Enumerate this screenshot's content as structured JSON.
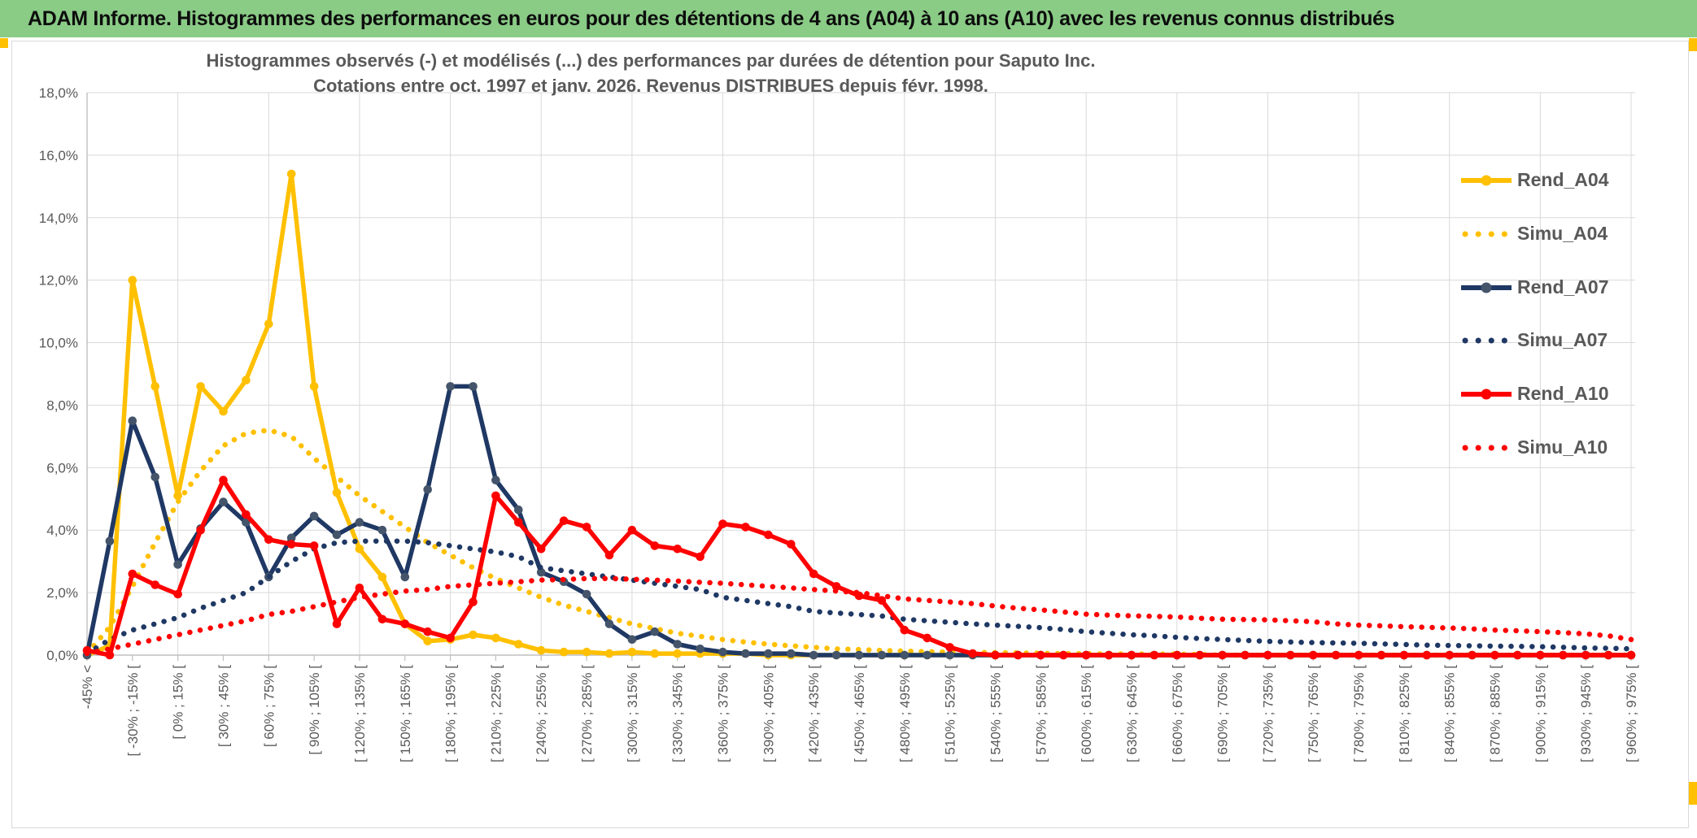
{
  "window": {
    "title": "ADAM Informe. Histogrammes des performances en euros pour des détentions de 4 ans (A04) à 10 ans (A10) avec les revenus connus distribués",
    "banner_color": "#8ACB86",
    "accent_color": "#FFC000"
  },
  "chart_data": {
    "type": "line",
    "title_line1": "Histogrammes observés (-) et modélisés (...) des performances par durées de détention pour Saputo Inc.",
    "title_line2": "Cotations entre oct. 1997 et janv. 2026. Revenus DISTRIBUES depuis févr. 1998.",
    "grid": true,
    "legend_position": "right",
    "ylim": [
      0,
      18
    ],
    "y_tick_step": 2,
    "y_tick_labels": [
      "0,0%",
      "2,0%",
      "4,0%",
      "6,0%",
      "8,0%",
      "10,0%",
      "12,0%",
      "14,0%",
      "16,0%",
      "18,0%"
    ],
    "n_points": 69,
    "label_every": 2,
    "x_axis_labels": [
      "-45% <",
      "[ -30% ; -15% [",
      "[ 0% ; 15% [",
      "[ 30% ; 45% [",
      "[ 60% ; 75% [",
      "[ 90% ; 105% [",
      "[ 120% ; 135% [",
      "[ 150% ; 165% [",
      "[ 180% ; 195% [",
      "[ 210% ; 225% [",
      "[ 240% ; 255% [",
      "[ 270% ; 285% [",
      "[ 300% ; 315% [",
      "[ 330% ; 345% [",
      "[ 360% ; 375% [",
      "[ 390% ; 405% [",
      "[ 420% ; 435% [",
      "[ 450% ; 465% [",
      "[ 480% ; 495% [",
      "[ 510% ; 525% [",
      "[ 540% ; 555% [",
      "[ 570% ; 585% [",
      "[ 600% ; 615% [",
      "[ 630% ; 645% [",
      "[ 660% ; 675% [",
      "[ 690% ; 705% [",
      "[ 720% ; 735% [",
      "[ 750% ; 765% [",
      "[ 780% ; 795% [",
      "[ 810% ; 825% [",
      "[ 840% ; 855% [",
      "[ 870% ; 885% [",
      "[ 900% ; 915% [",
      "[ 930% ; 945% [",
      "[ 960% ; 975% ["
    ],
    "text_color": "#595959",
    "grid_color": "#d9d9d9",
    "axis_color": "#bfbfbf",
    "series": [
      {
        "name": "Rend_A04",
        "color": "#FFC000",
        "marker_color": "#FFC000",
        "style": "solid",
        "marker": true,
        "values": [
          0,
          0.3,
          12,
          8.6,
          5.1,
          8.6,
          7.8,
          8.8,
          10.6,
          15.4,
          8.6,
          5.2,
          3.4,
          2.5,
          1.0,
          0.45,
          0.5,
          0.65,
          0.55,
          0.35,
          0.15,
          0.1,
          0.1,
          0.05,
          0.1,
          0.05,
          0.05,
          0.05,
          0.05,
          0.05,
          0,
          0,
          0,
          0,
          0,
          0,
          0,
          0,
          0,
          0,
          0,
          0,
          0,
          0,
          0,
          0,
          0,
          0,
          0,
          0,
          0,
          0,
          0,
          0,
          0,
          0,
          0,
          0,
          0,
          0,
          0,
          0,
          0,
          0,
          0,
          0,
          0,
          0,
          0
        ]
      },
      {
        "name": "Simu_A04",
        "color": "#FFC000",
        "style": "dotted",
        "marker": false,
        "values": [
          0.05,
          0.9,
          2.2,
          3.6,
          4.9,
          5.9,
          6.7,
          7.1,
          7.2,
          7.0,
          6.3,
          5.7,
          5.1,
          4.6,
          4.1,
          3.6,
          3.2,
          2.8,
          2.45,
          2.15,
          1.85,
          1.6,
          1.4,
          1.2,
          1.0,
          0.85,
          0.7,
          0.6,
          0.5,
          0.42,
          0.35,
          0.3,
          0.25,
          0.2,
          0.18,
          0.15,
          0.13,
          0.11,
          0.1,
          0.09,
          0.08,
          0.07,
          0.06,
          0.05,
          0.05,
          0.04,
          0.04,
          0.03,
          0.03,
          0.02,
          0,
          0,
          0,
          0,
          0,
          0,
          0,
          0,
          0,
          0,
          0,
          0,
          0,
          0,
          0,
          0,
          0,
          0,
          0
        ]
      },
      {
        "name": "Rend_A07",
        "color": "#1F3864",
        "marker_color": "#44546A",
        "style": "solid",
        "marker": true,
        "values": [
          0,
          3.65,
          7.5,
          5.7,
          2.9,
          4.05,
          4.9,
          4.25,
          2.5,
          3.75,
          4.45,
          3.85,
          4.25,
          4.0,
          2.5,
          5.3,
          8.6,
          8.6,
          5.6,
          4.65,
          2.65,
          2.35,
          1.95,
          1.0,
          0.5,
          0.75,
          0.35,
          0.2,
          0.1,
          0.05,
          0.05,
          0.05,
          0,
          0,
          0,
          0,
          0,
          0,
          0,
          0,
          0,
          0,
          0,
          0,
          0,
          0,
          0,
          0,
          0,
          0,
          0,
          0,
          0,
          0,
          0,
          0,
          0,
          0,
          0,
          0,
          0,
          0,
          0,
          0,
          0,
          0,
          0,
          0,
          0
        ]
      },
      {
        "name": "Simu_A07",
        "color": "#1F3864",
        "style": "dotted",
        "marker": false,
        "values": [
          0.05,
          0.5,
          0.8,
          1.0,
          1.2,
          1.5,
          1.75,
          2.0,
          2.5,
          3.0,
          3.4,
          3.6,
          3.65,
          3.65,
          3.65,
          3.6,
          3.5,
          3.4,
          3.3,
          3.15,
          2.8,
          2.7,
          2.6,
          2.5,
          2.4,
          2.3,
          2.2,
          2.1,
          1.85,
          1.75,
          1.65,
          1.55,
          1.4,
          1.35,
          1.3,
          1.25,
          1.15,
          1.1,
          1.05,
          1.0,
          0.96,
          0.92,
          0.88,
          0.82,
          0.75,
          0.7,
          0.65,
          0.62,
          0.57,
          0.53,
          0.5,
          0.47,
          0.44,
          0.42,
          0.4,
          0.39,
          0.38,
          0.36,
          0.34,
          0.32,
          0.31,
          0.3,
          0.29,
          0.28,
          0.27,
          0.25,
          0.23,
          0.22,
          0.2
        ]
      },
      {
        "name": "Rend_A10",
        "color": "#FF0000",
        "marker_color": "#FF0000",
        "style": "solid",
        "marker": true,
        "values": [
          0.15,
          0,
          2.6,
          2.25,
          1.95,
          4.0,
          5.6,
          4.5,
          3.7,
          3.55,
          3.5,
          1.0,
          2.15,
          1.15,
          1.0,
          0.75,
          0.55,
          1.7,
          5.1,
          4.25,
          3.4,
          4.3,
          4.1,
          3.2,
          4.0,
          3.5,
          3.4,
          3.15,
          4.2,
          4.1,
          3.85,
          3.55,
          2.6,
          2.2,
          1.9,
          1.75,
          0.8,
          0.55,
          0.25,
          0.05,
          0,
          0,
          0,
          0,
          0,
          0,
          0,
          0,
          0,
          0,
          0,
          0,
          0,
          0,
          0,
          0,
          0,
          0,
          0,
          0,
          0,
          0,
          0,
          0,
          0,
          0,
          0,
          0,
          0
        ]
      },
      {
        "name": "Simu_A10",
        "color": "#FF0000",
        "style": "dotted",
        "marker": false,
        "values": [
          0.05,
          0.2,
          0.35,
          0.5,
          0.65,
          0.8,
          0.95,
          1.1,
          1.3,
          1.4,
          1.55,
          1.7,
          1.85,
          1.95,
          2.05,
          2.1,
          2.2,
          2.25,
          2.3,
          2.35,
          2.4,
          2.42,
          2.45,
          2.45,
          2.43,
          2.4,
          2.37,
          2.33,
          2.3,
          2.25,
          2.2,
          2.15,
          2.1,
          2.05,
          2.0,
          1.9,
          1.8,
          1.75,
          1.7,
          1.65,
          1.57,
          1.5,
          1.45,
          1.38,
          1.31,
          1.28,
          1.26,
          1.24,
          1.22,
          1.18,
          1.15,
          1.14,
          1.13,
          1.1,
          1.07,
          1.0,
          0.96,
          0.94,
          0.91,
          0.89,
          0.87,
          0.84,
          0.8,
          0.78,
          0.75,
          0.72,
          0.68,
          0.62,
          0.5
        ]
      }
    ]
  }
}
